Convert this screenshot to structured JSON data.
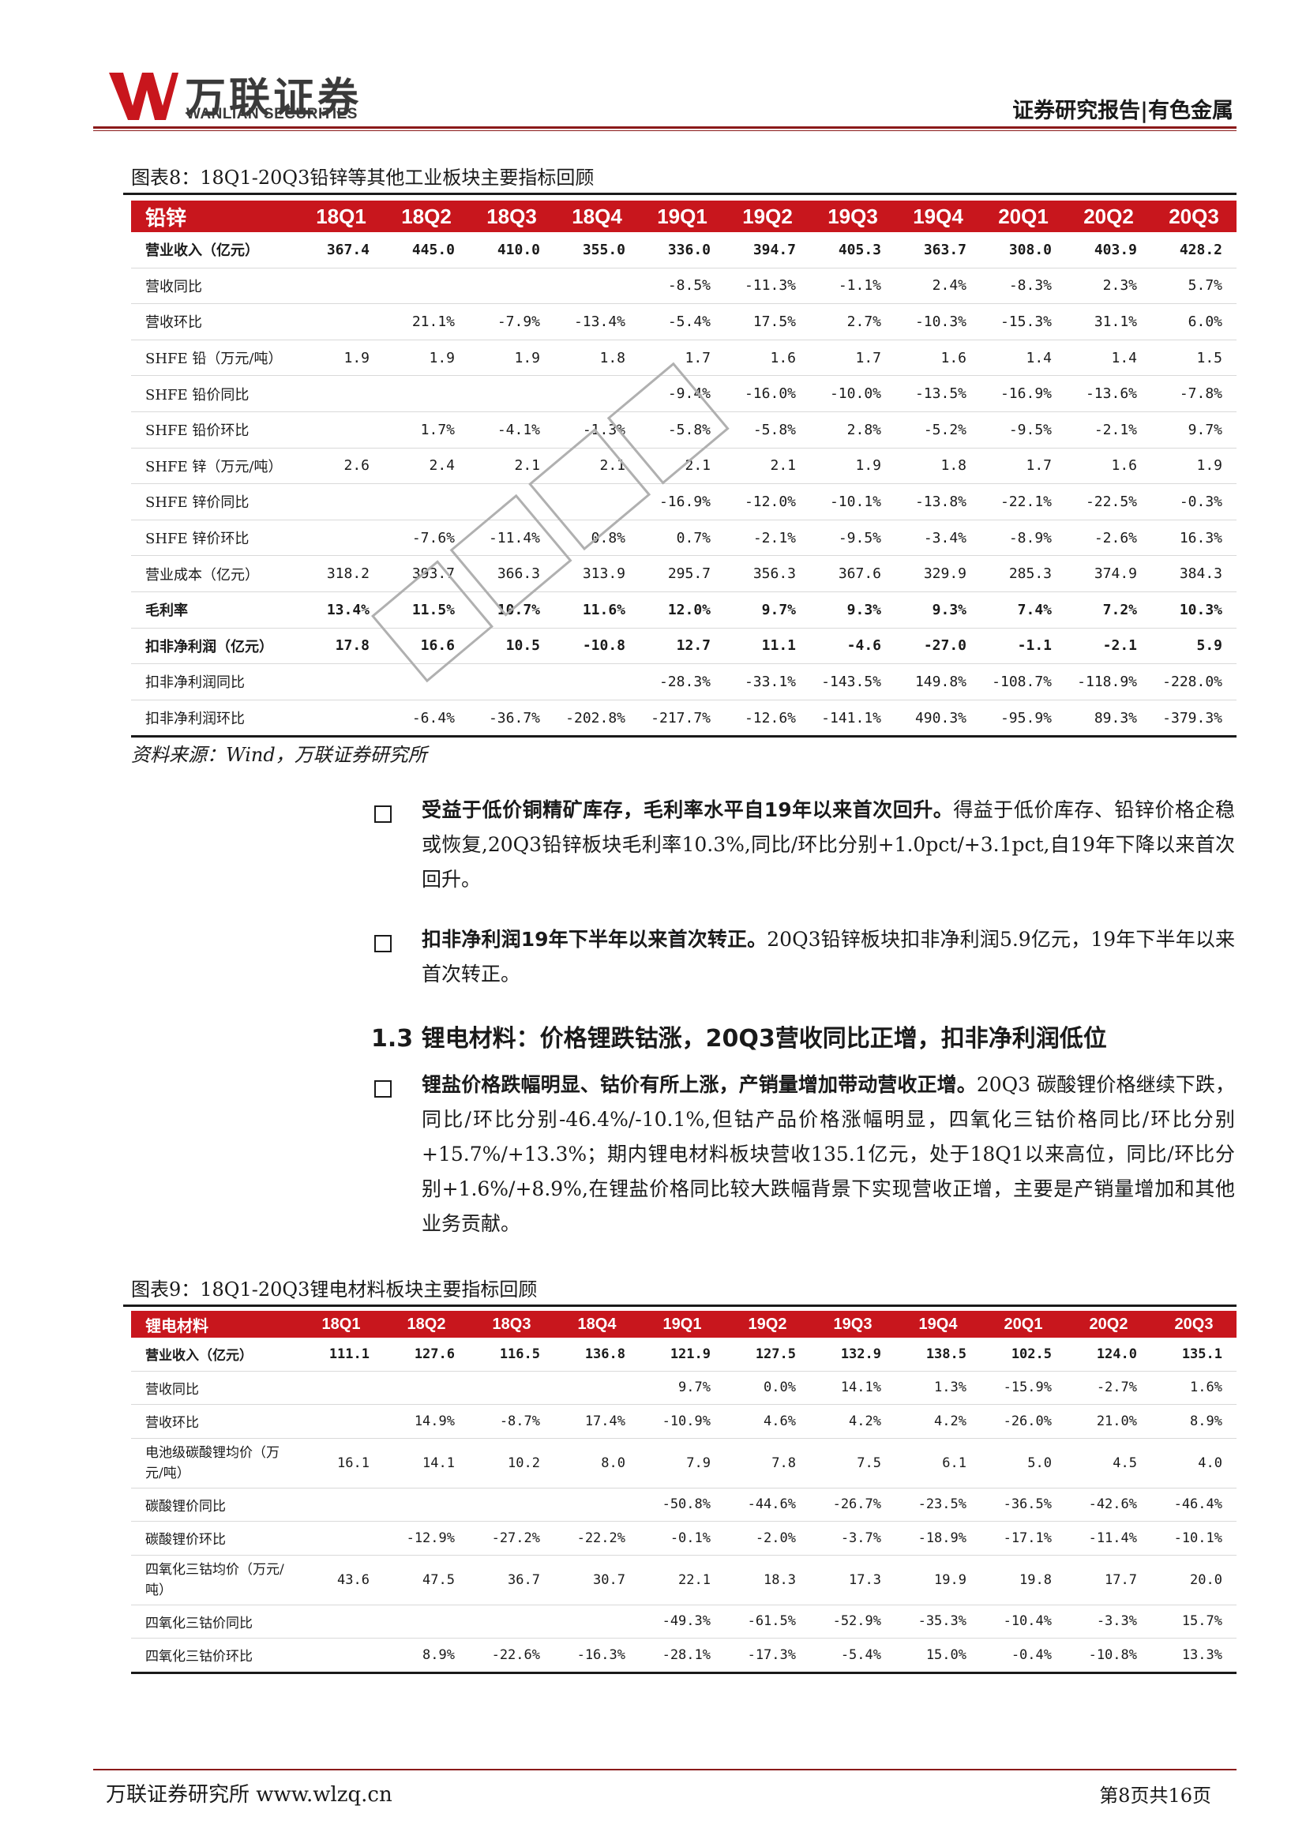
{
  "header": {
    "logo_cn": "万联证券",
    "logo_en": "WANLIAN SECURITIES",
    "report_tag": "证券研究报告|有色金属",
    "brand_color": "#c8161d"
  },
  "figure8": {
    "title": "图表8：18Q1-20Q3铅锌等其他工业板块主要指标回顾",
    "columns": [
      "铅锌",
      "18Q1",
      "18Q2",
      "18Q3",
      "18Q4",
      "19Q1",
      "19Q2",
      "19Q3",
      "19Q4",
      "20Q1",
      "20Q2",
      "20Q3"
    ],
    "rows": [
      {
        "label": "营业收入（亿元）",
        "bold": true,
        "values": [
          "367.4",
          "445.0",
          "410.0",
          "355.0",
          "336.0",
          "394.7",
          "405.3",
          "363.7",
          "308.0",
          "403.9",
          "428.2"
        ]
      },
      {
        "label": "营收同比",
        "bold": false,
        "values": [
          "",
          "",
          "",
          "",
          "-8.5%",
          "-11.3%",
          "-1.1%",
          "2.4%",
          "-8.3%",
          "2.3%",
          "5.7%"
        ]
      },
      {
        "label": "营收环比",
        "bold": false,
        "values": [
          "",
          "21.1%",
          "-7.9%",
          "-13.4%",
          "-5.4%",
          "17.5%",
          "2.7%",
          "-10.3%",
          "-15.3%",
          "31.1%",
          "6.0%"
        ]
      },
      {
        "label": "SHFE 铅（万元/吨）",
        "bold": false,
        "values": [
          "1.9",
          "1.9",
          "1.9",
          "1.8",
          "1.7",
          "1.6",
          "1.7",
          "1.6",
          "1.4",
          "1.4",
          "1.5"
        ]
      },
      {
        "label": "SHFE 铅价同比",
        "bold": false,
        "values": [
          "",
          "",
          "",
          "",
          "-9.4%",
          "-16.0%",
          "-10.0%",
          "-13.5%",
          "-16.9%",
          "-13.6%",
          "-7.8%"
        ]
      },
      {
        "label": "SHFE 铅价环比",
        "bold": false,
        "values": [
          "",
          "1.7%",
          "-4.1%",
          "-1.3%",
          "-5.8%",
          "-5.8%",
          "2.8%",
          "-5.2%",
          "-9.5%",
          "-2.1%",
          "9.7%"
        ]
      },
      {
        "label": "SHFE 锌（万元/吨）",
        "bold": false,
        "values": [
          "2.6",
          "2.4",
          "2.1",
          "2.1",
          "2.1",
          "2.1",
          "1.9",
          "1.8",
          "1.7",
          "1.6",
          "1.9"
        ]
      },
      {
        "label": "SHFE 锌价同比",
        "bold": false,
        "values": [
          "",
          "",
          "",
          "",
          "-16.9%",
          "-12.0%",
          "-10.1%",
          "-13.8%",
          "-22.1%",
          "-22.5%",
          "-0.3%"
        ]
      },
      {
        "label": "SHFE 锌价环比",
        "bold": false,
        "values": [
          "",
          "-7.6%",
          "-11.4%",
          "0.8%",
          "0.7%",
          "-2.1%",
          "-9.5%",
          "-3.4%",
          "-8.9%",
          "-2.6%",
          "16.3%"
        ]
      },
      {
        "label": "营业成本（亿元）",
        "bold": false,
        "values": [
          "318.2",
          "393.7",
          "366.3",
          "313.9",
          "295.7",
          "356.3",
          "367.6",
          "329.9",
          "285.3",
          "374.9",
          "384.3"
        ]
      },
      {
        "label": "毛利率",
        "bold": true,
        "values": [
          "13.4%",
          "11.5%",
          "10.7%",
          "11.6%",
          "12.0%",
          "9.7%",
          "9.3%",
          "9.3%",
          "7.4%",
          "7.2%",
          "10.3%"
        ]
      },
      {
        "label": "扣非净利润（亿元）",
        "bold": true,
        "values": [
          "17.8",
          "16.6",
          "10.5",
          "-10.8",
          "12.7",
          "11.1",
          "-4.6",
          "-27.0",
          "-1.1",
          "-2.1",
          "5.9"
        ]
      },
      {
        "label": "扣非净利润同比",
        "bold": false,
        "values": [
          "",
          "",
          "",
          "",
          "-28.3%",
          "-33.1%",
          "-143.5%",
          "149.8%",
          "-108.7%",
          "-118.9%",
          "-228.0%"
        ]
      },
      {
        "label": "扣非净利润环比",
        "bold": false,
        "values": [
          "",
          "-6.4%",
          "-36.7%",
          "-202.8%",
          "-217.7%",
          "-12.6%",
          "-141.1%",
          "490.3%",
          "-95.9%",
          "89.3%",
          "-379.3%"
        ]
      }
    ],
    "source": "资料来源：Wind，万联证券研究所"
  },
  "paragraphs": [
    {
      "bold": "受益于低价铜精矿库存，毛利率水平自19年以来首次回升。",
      "text": "得益于低价库存、铅锌价格企稳或恢复,20Q3铅锌板块毛利率10.3%,同比/环比分别+1.0pct/+3.1pct,自19年下降以来首次回升。"
    },
    {
      "bold": "扣非净利润19年下半年以来首次转正。",
      "text": "20Q3铅锌板块扣非净利润5.9亿元，19年下半年以来首次转正。"
    },
    {
      "bold": "锂盐价格跌幅明显、钴价有所上涨，产销量增加带动营收正增。",
      "text": "20Q3 碳酸锂价格继续下跌，同比/环比分别-46.4%/-10.1%,但钴产品价格涨幅明显，四氧化三钴价格同比/环比分别+15.7%/+13.3%；期内锂电材料板块营收135.1亿元，处于18Q1以来高位，同比/环比分别+1.6%/+8.9%,在锂盐价格同比较大跌幅背景下实现营收正增，主要是产销量增加和其他业务贡献。"
    }
  ],
  "section_heading": "1.3 锂电材料：价格锂跌钴涨，20Q3营收同比正增，扣非净利润低位",
  "figure9": {
    "title": "图表9：18Q1-20Q3锂电材料板块主要指标回顾",
    "columns": [
      "锂电材料",
      "18Q1",
      "18Q2",
      "18Q3",
      "18Q4",
      "19Q1",
      "19Q2",
      "19Q3",
      "19Q4",
      "20Q1",
      "20Q2",
      "20Q3"
    ],
    "rows": [
      {
        "label": "营业收入（亿元）",
        "bold": true,
        "tall": false,
        "values": [
          "111.1",
          "127.6",
          "116.5",
          "136.8",
          "121.9",
          "127.5",
          "132.9",
          "138.5",
          "102.5",
          "124.0",
          "135.1"
        ]
      },
      {
        "label": "营收同比",
        "bold": false,
        "tall": false,
        "values": [
          "",
          "",
          "",
          "",
          "9.7%",
          "0.0%",
          "14.1%",
          "1.3%",
          "-15.9%",
          "-2.7%",
          "1.6%"
        ]
      },
      {
        "label": "营收环比",
        "bold": false,
        "tall": false,
        "values": [
          "",
          "14.9%",
          "-8.7%",
          "17.4%",
          "-10.9%",
          "4.6%",
          "4.2%",
          "4.2%",
          "-26.0%",
          "21.0%",
          "8.9%"
        ]
      },
      {
        "label": "电池级碳酸锂均价（万元/吨）",
        "bold": false,
        "tall": true,
        "values": [
          "16.1",
          "14.1",
          "10.2",
          "8.0",
          "7.9",
          "7.8",
          "7.5",
          "6.1",
          "5.0",
          "4.5",
          "4.0"
        ]
      },
      {
        "label": "碳酸锂价同比",
        "bold": false,
        "tall": false,
        "values": [
          "",
          "",
          "",
          "",
          "-50.8%",
          "-44.6%",
          "-26.7%",
          "-23.5%",
          "-36.5%",
          "-42.6%",
          "-46.4%"
        ]
      },
      {
        "label": "碳酸锂价环比",
        "bold": false,
        "tall": false,
        "values": [
          "",
          "-12.9%",
          "-27.2%",
          "-22.2%",
          "-0.1%",
          "-2.0%",
          "-3.7%",
          "-18.9%",
          "-17.1%",
          "-11.4%",
          "-10.1%"
        ]
      },
      {
        "label": "四氧化三钴均价（万元/吨）",
        "bold": false,
        "tall": true,
        "values": [
          "43.6",
          "47.5",
          "36.7",
          "30.7",
          "22.1",
          "18.3",
          "17.3",
          "19.9",
          "19.8",
          "17.7",
          "20.0"
        ]
      },
      {
        "label": "四氧化三钴价同比",
        "bold": false,
        "tall": false,
        "values": [
          "",
          "",
          "",
          "",
          "-49.3%",
          "-61.5%",
          "-52.9%",
          "-35.3%",
          "-10.4%",
          "-3.3%",
          "15.7%"
        ]
      },
      {
        "label": "四氧化三钴价环比",
        "bold": false,
        "tall": false,
        "values": [
          "",
          "8.9%",
          "-22.6%",
          "-16.3%",
          "-28.1%",
          "-17.3%",
          "-5.4%",
          "15.0%",
          "-0.4%",
          "-10.8%",
          "13.3%"
        ]
      }
    ]
  },
  "footer": {
    "left": "万联证券研究所 www.wlzq.cn",
    "right": "第8页共16页"
  }
}
